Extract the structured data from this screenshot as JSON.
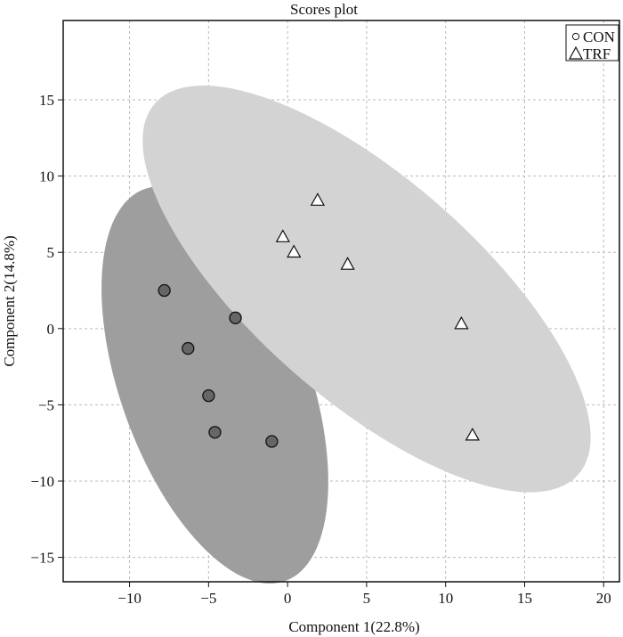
{
  "chart_data": {
    "type": "scatter",
    "title": "Scores plot",
    "xlabel": "Component 1(22.8%)",
    "ylabel": "Component 2(14.8%)",
    "xlim": [
      -14.2,
      21
    ],
    "ylim": [
      -16.6,
      20.2
    ],
    "grid": true,
    "legend_position": "top-right",
    "x_ticks": [
      -10,
      -5,
      0,
      5,
      10,
      15,
      20
    ],
    "x_tick_labels": [
      "−10",
      "−5",
      "0",
      "5",
      "10",
      "15",
      "20"
    ],
    "y_ticks": [
      15,
      10,
      5,
      0,
      -5,
      -10,
      -15
    ],
    "y_tick_labels": [
      "15",
      "10",
      "5",
      "0",
      "−5",
      "−10",
      "−15"
    ],
    "series": [
      {
        "name": "CON",
        "marker": "circle",
        "color": "#666666",
        "ellipse_color": "#9e9e9e",
        "points": [
          [
            -7.8,
            2.5
          ],
          [
            -6.3,
            -1.3
          ],
          [
            -3.3,
            0.7
          ],
          [
            -5.0,
            -4.4
          ],
          [
            -4.6,
            -6.8
          ],
          [
            -1.0,
            -7.4
          ]
        ],
        "ellipse": {
          "cx": -4.6,
          "cy": -3.7,
          "rx": 6.0,
          "ry": 13.6,
          "angle_deg": 18.8
        }
      },
      {
        "name": "TRF",
        "marker": "triangle",
        "color": "#ffffff",
        "ellipse_color": "#d3d3d3",
        "points": [
          [
            -0.3,
            6.0
          ],
          [
            0.4,
            5.0
          ],
          [
            1.9,
            8.4
          ],
          [
            3.8,
            4.2
          ],
          [
            11.0,
            0.3
          ],
          [
            11.7,
            -7.0
          ]
        ],
        "ellipse": {
          "cx": 5.0,
          "cy": 2.6,
          "rx": 18.1,
          "ry": 7.15,
          "angle_deg": -42.6
        }
      }
    ]
  }
}
